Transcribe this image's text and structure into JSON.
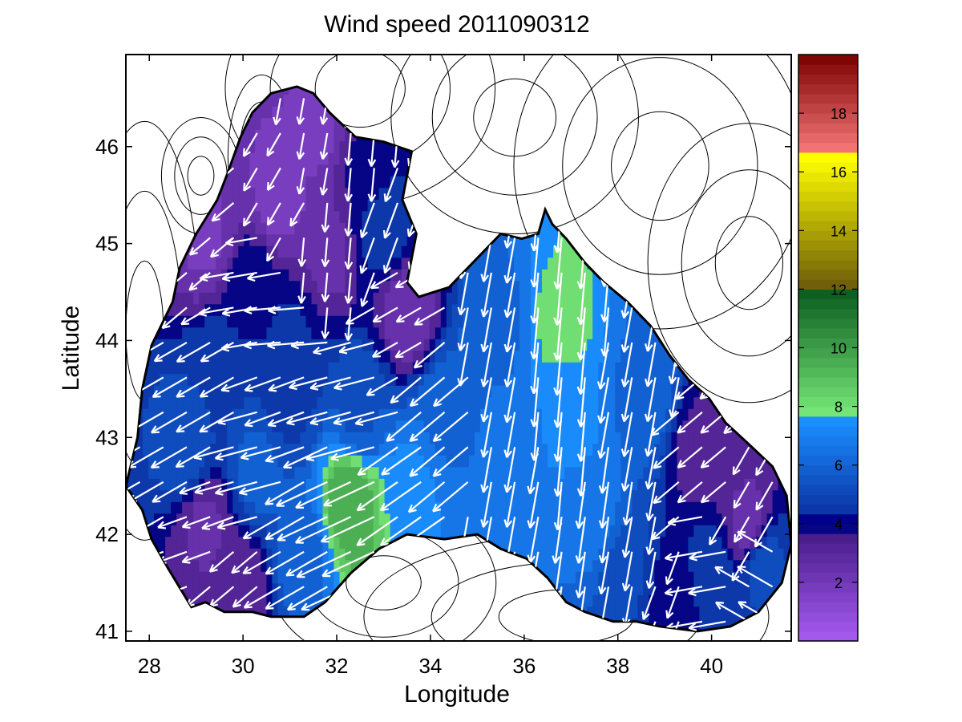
{
  "title": "Wind speed 2011090312",
  "x_axis": {
    "label": "Longitude",
    "range": [
      27.5,
      41.7
    ],
    "ticks": [
      "28",
      "30",
      "32",
      "34",
      "36",
      "38",
      "40"
    ]
  },
  "y_axis": {
    "label": "Latitude",
    "range": [
      40.9,
      46.95
    ],
    "ticks": [
      "41",
      "42",
      "43",
      "44",
      "45",
      "46"
    ]
  },
  "colorbar": {
    "range": [
      0,
      20
    ],
    "ticks": [
      "2",
      "4",
      "6",
      "8",
      "10",
      "12",
      "14",
      "16",
      "18"
    ],
    "segments": [
      {
        "from": 0,
        "to": 3.5,
        "low": "#a85cf2",
        "high": "#4a1f8c"
      },
      {
        "from": 3.5,
        "to": 4.2,
        "low": "#0a0a80",
        "high": "#00008b"
      },
      {
        "from": 4.2,
        "to": 7.5,
        "low": "#0a2ea0",
        "high": "#1a8fff"
      },
      {
        "from": 7.5,
        "to": 12,
        "low": "#7ef07e",
        "high": "#0a5a1e"
      },
      {
        "from": 12,
        "to": 16.5,
        "low": "#6b5a0a",
        "high": "#ffff00"
      },
      {
        "from": 16.5,
        "to": 20,
        "low": "#ff7f7f",
        "high": "#7a0000"
      }
    ]
  },
  "colors": {
    "land_contour": "#000000",
    "wind_arrow": "#ffffff",
    "coastline": "#000000"
  },
  "chart_data": {
    "type": "heatmap",
    "title": "Wind speed 2011090312",
    "xlabel": "Longitude",
    "ylabel": "Latitude",
    "xlim": [
      27.5,
      41.7
    ],
    "ylim": [
      40.9,
      46.95
    ],
    "colorbar_range": [
      0,
      20
    ],
    "coastline": [
      [
        27.5,
        42.5
      ],
      [
        27.75,
        43.0
      ],
      [
        27.85,
        43.5
      ],
      [
        28.05,
        43.95
      ],
      [
        28.5,
        44.4
      ],
      [
        28.65,
        44.75
      ],
      [
        29.0,
        45.1
      ],
      [
        29.45,
        45.45
      ],
      [
        29.65,
        45.7
      ],
      [
        29.95,
        46.1
      ],
      [
        30.2,
        46.35
      ],
      [
        30.6,
        46.55
      ],
      [
        31.15,
        46.62
      ],
      [
        31.5,
        46.55
      ],
      [
        31.85,
        46.35
      ],
      [
        32.4,
        46.1
      ],
      [
        33.0,
        46.05
      ],
      [
        33.6,
        45.95
      ],
      [
        33.4,
        45.45
      ],
      [
        33.7,
        45.1
      ],
      [
        33.5,
        44.6
      ],
      [
        33.75,
        44.45
      ],
      [
        34.4,
        44.55
      ],
      [
        34.9,
        44.8
      ],
      [
        35.5,
        45.1
      ],
      [
        35.95,
        45.05
      ],
      [
        36.3,
        45.1
      ],
      [
        36.45,
        45.35
      ],
      [
        36.6,
        45.2
      ],
      [
        36.9,
        45.05
      ],
      [
        37.3,
        44.8
      ],
      [
        37.7,
        44.6
      ],
      [
        38.2,
        44.4
      ],
      [
        38.7,
        44.15
      ],
      [
        39.1,
        43.85
      ],
      [
        39.5,
        43.6
      ],
      [
        39.95,
        43.4
      ],
      [
        40.3,
        43.15
      ],
      [
        40.75,
        42.95
      ],
      [
        41.3,
        42.7
      ],
      [
        41.6,
        42.4
      ],
      [
        41.7,
        41.9
      ],
      [
        41.5,
        41.5
      ],
      [
        41.0,
        41.2
      ],
      [
        40.4,
        41.05
      ],
      [
        39.7,
        41.0
      ],
      [
        38.9,
        41.05
      ],
      [
        38.4,
        41.1
      ],
      [
        37.9,
        41.1
      ],
      [
        37.3,
        41.2
      ],
      [
        36.9,
        41.3
      ],
      [
        36.5,
        41.55
      ],
      [
        36.05,
        41.75
      ],
      [
        35.5,
        41.85
      ],
      [
        35.0,
        42.0
      ],
      [
        34.3,
        41.95
      ],
      [
        33.5,
        42.0
      ],
      [
        32.9,
        41.85
      ],
      [
        32.3,
        41.6
      ],
      [
        31.75,
        41.3
      ],
      [
        31.3,
        41.15
      ],
      [
        30.6,
        41.15
      ],
      [
        30.2,
        41.2
      ],
      [
        29.6,
        41.2
      ],
      [
        29.2,
        41.3
      ],
      [
        28.9,
        41.25
      ],
      [
        28.4,
        41.65
      ],
      [
        28.05,
        41.95
      ],
      [
        27.85,
        42.25
      ],
      [
        27.5,
        42.5
      ]
    ],
    "wind_field": [
      {
        "lon": 29.2,
        "lat": 45.1,
        "speed": 2.0,
        "dir": -140
      },
      {
        "lon": 30.8,
        "lat": 45.5,
        "speed": 1.8,
        "dir": -120
      },
      {
        "lon": 31.6,
        "lat": 46.2,
        "speed": 2.0,
        "dir": -100
      },
      {
        "lon": 32.6,
        "lat": 45.8,
        "speed": 3.6,
        "dir": -95
      },
      {
        "lon": 33.0,
        "lat": 45.2,
        "speed": 4.6,
        "dir": -110
      },
      {
        "lon": 31.8,
        "lat": 44.9,
        "speed": 2.6,
        "dir": -95
      },
      {
        "lon": 33.5,
        "lat": 44.3,
        "speed": 2.4,
        "dir": -150
      },
      {
        "lon": 30.2,
        "lat": 44.5,
        "speed": 4.0,
        "dir": -170
      },
      {
        "lon": 31.0,
        "lat": 44.0,
        "speed": 4.3,
        "dir": -175
      },
      {
        "lon": 29.5,
        "lat": 43.6,
        "speed": 4.8,
        "dir": -150
      },
      {
        "lon": 30.9,
        "lat": 43.5,
        "speed": 4.6,
        "dir": -160
      },
      {
        "lon": 32.5,
        "lat": 43.3,
        "speed": 5.5,
        "dir": -165
      },
      {
        "lon": 34.3,
        "lat": 43.2,
        "speed": 6.2,
        "dir": -140
      },
      {
        "lon": 28.8,
        "lat": 42.9,
        "speed": 5.3,
        "dir": -150
      },
      {
        "lon": 30.3,
        "lat": 42.7,
        "speed": 5.8,
        "dir": -165
      },
      {
        "lon": 29.2,
        "lat": 42.1,
        "speed": 2.7,
        "dir": -160
      },
      {
        "lon": 32.3,
        "lat": 42.3,
        "speed": 9.8,
        "dir": -155
      },
      {
        "lon": 33.6,
        "lat": 42.5,
        "speed": 7.2,
        "dir": -145
      },
      {
        "lon": 31.3,
        "lat": 41.8,
        "speed": 6.0,
        "dir": -150
      },
      {
        "lon": 35.5,
        "lat": 44.2,
        "speed": 6.2,
        "dir": -100
      },
      {
        "lon": 35.6,
        "lat": 42.8,
        "speed": 6.4,
        "dir": -100
      },
      {
        "lon": 36.8,
        "lat": 44.2,
        "speed": 8.0,
        "dir": -95
      },
      {
        "lon": 37.0,
        "lat": 43.2,
        "speed": 7.2,
        "dir": -95
      },
      {
        "lon": 37.5,
        "lat": 42.2,
        "speed": 6.6,
        "dir": -98
      },
      {
        "lon": 38.5,
        "lat": 43.5,
        "speed": 6.2,
        "dir": -100
      },
      {
        "lon": 38.2,
        "lat": 41.6,
        "speed": 5.0,
        "dir": -100
      },
      {
        "lon": 39.8,
        "lat": 42.8,
        "speed": 3.2,
        "dir": -140
      },
      {
        "lon": 40.8,
        "lat": 42.1,
        "speed": 2.6,
        "dir": -120
      },
      {
        "lon": 40.0,
        "lat": 41.6,
        "speed": 4.6,
        "dir": -170
      },
      {
        "lon": 41.1,
        "lat": 41.7,
        "speed": 5.2,
        "dir": 150
      },
      {
        "lon": 39.2,
        "lat": 41.3,
        "speed": 3.6,
        "dir": -110
      },
      {
        "lon": 29.9,
        "lat": 41.5,
        "speed": 3.0,
        "dir": -140
      }
    ]
  }
}
